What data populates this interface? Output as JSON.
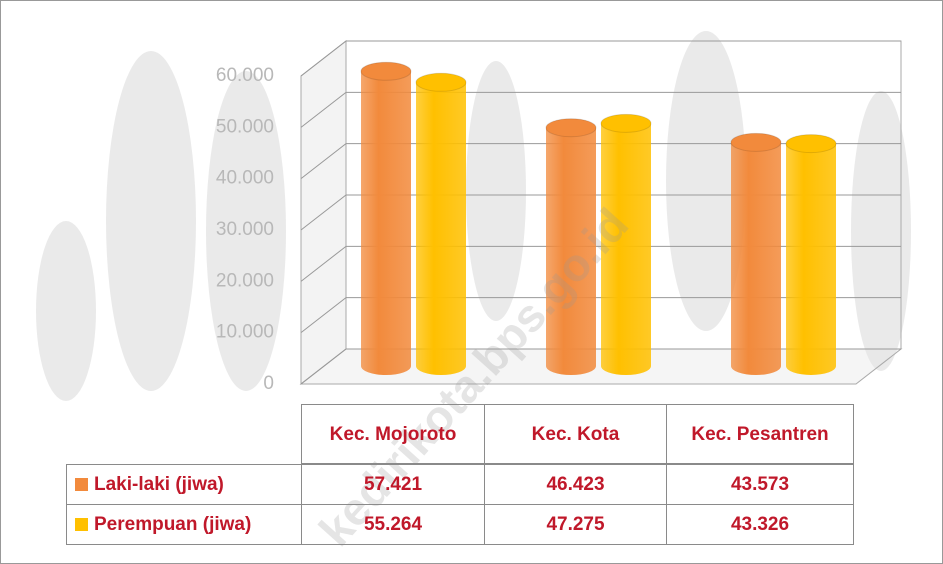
{
  "chart_data": {
    "type": "bar3d-cylinder",
    "categories": [
      "Kec. Mojoroto",
      "Kec. Kota",
      "Kec. Pesantren"
    ],
    "series": [
      {
        "name": "Laki-laki (jiwa)",
        "color": "#f28a3c",
        "values": [
          57421,
          46423,
          43573
        ],
        "value_labels": [
          "57.421",
          "46.423",
          "43.573"
        ]
      },
      {
        "name": "Perempuan (jiwa)",
        "color": "#ffc000",
        "values": [
          55264,
          47275,
          43326
        ],
        "value_labels": [
          "55.264",
          "47.275",
          "43.326"
        ]
      }
    ],
    "ylim": [
      0,
      60000
    ],
    "yticks": [
      {
        "value": 0,
        "label": "0"
      },
      {
        "value": 10000,
        "label": "10.000"
      },
      {
        "value": 20000,
        "label": "20.000"
      },
      {
        "value": 30000,
        "label": "30.000"
      },
      {
        "value": 40000,
        "label": "40.000"
      },
      {
        "value": 50000,
        "label": "50.000"
      },
      {
        "value": 60000,
        "label": "60.000"
      }
    ],
    "grid": true,
    "watermark": "kedirikota.bps.go.id"
  }
}
